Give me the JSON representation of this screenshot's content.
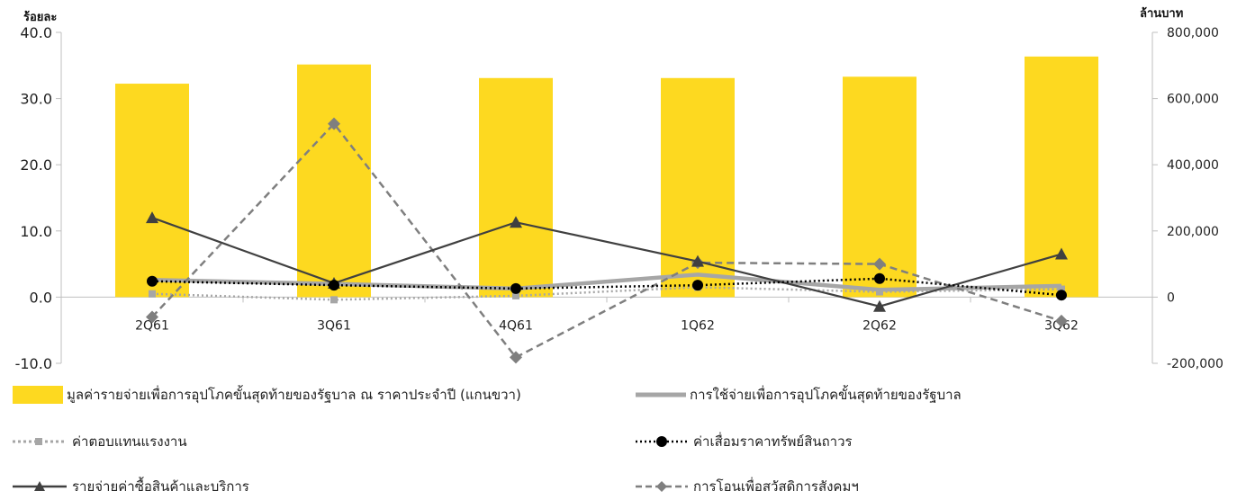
{
  "header": {
    "left_unit": "ร้อยละ",
    "right_unit": "ล้านบาท"
  },
  "chart_data": {
    "type": "bar",
    "categories": [
      "2Q61",
      "3Q61",
      "4Q61",
      "1Q62",
      "2Q62",
      "3Q62"
    ],
    "left_axis": {
      "ticks": [
        "40.0",
        "30.0",
        "20.0",
        "10.0",
        "0.0",
        "-10.0"
      ],
      "range": [
        -10,
        40
      ]
    },
    "right_axis": {
      "ticks": [
        "800,000",
        "600,000",
        "400,000",
        "200,000",
        "0",
        "-200,000"
      ],
      "range": [
        -200000,
        800000
      ]
    },
    "grid": false,
    "legend_position": "bottom",
    "series": [
      {
        "name": "มูลค่ารายจ่ายเพื่อการอุปโภคขั้นสุดท้ายของรัฐบาล ณ ราคาประจำปี (แกนขวา)",
        "kind": "bar",
        "axis": "right",
        "color": "#FDD920",
        "values": [
          645000,
          703000,
          662000,
          662000,
          666000,
          727000
        ]
      },
      {
        "name": "การใช้จ่ายเพื่อการอุปโภคขั้นสุดท้ายของรัฐบาล",
        "kind": "line",
        "axis": "left",
        "color": "#A6A6A6",
        "style": "solid-thick",
        "marker": "none",
        "values": [
          2.6,
          2.0,
          1.3,
          3.4,
          1.1,
          1.7
        ]
      },
      {
        "name": "ค่าตอบแทนแรงงาน",
        "kind": "line",
        "axis": "left",
        "color": "#A6A6A6",
        "style": "dotted",
        "marker": "square",
        "values": [
          0.5,
          -0.4,
          0.2,
          1.5,
          0.8,
          1.2
        ]
      },
      {
        "name": "ค่าเสื่อมราคาทรัพย์สินถาวร",
        "kind": "line",
        "axis": "left",
        "color": "#000000",
        "style": "dotted",
        "marker": "circle",
        "values": [
          2.4,
          1.8,
          1.3,
          1.8,
          2.8,
          0.3
        ]
      },
      {
        "name": "รายจ่ายค่าซื้อสินค้าและบริการ",
        "kind": "line",
        "axis": "left",
        "color": "#404040",
        "style": "solid",
        "marker": "triangle",
        "values": [
          12.0,
          2.1,
          11.3,
          5.4,
          -1.4,
          6.5
        ]
      },
      {
        "name": "การโอนเพื่อสวัสดิการสังคมฯ",
        "kind": "line",
        "axis": "left",
        "color": "#7F7F7F",
        "style": "dashed",
        "marker": "diamond",
        "values": [
          -3.0,
          26.2,
          -9.1,
          5.2,
          5.0,
          -3.6
        ]
      }
    ]
  }
}
